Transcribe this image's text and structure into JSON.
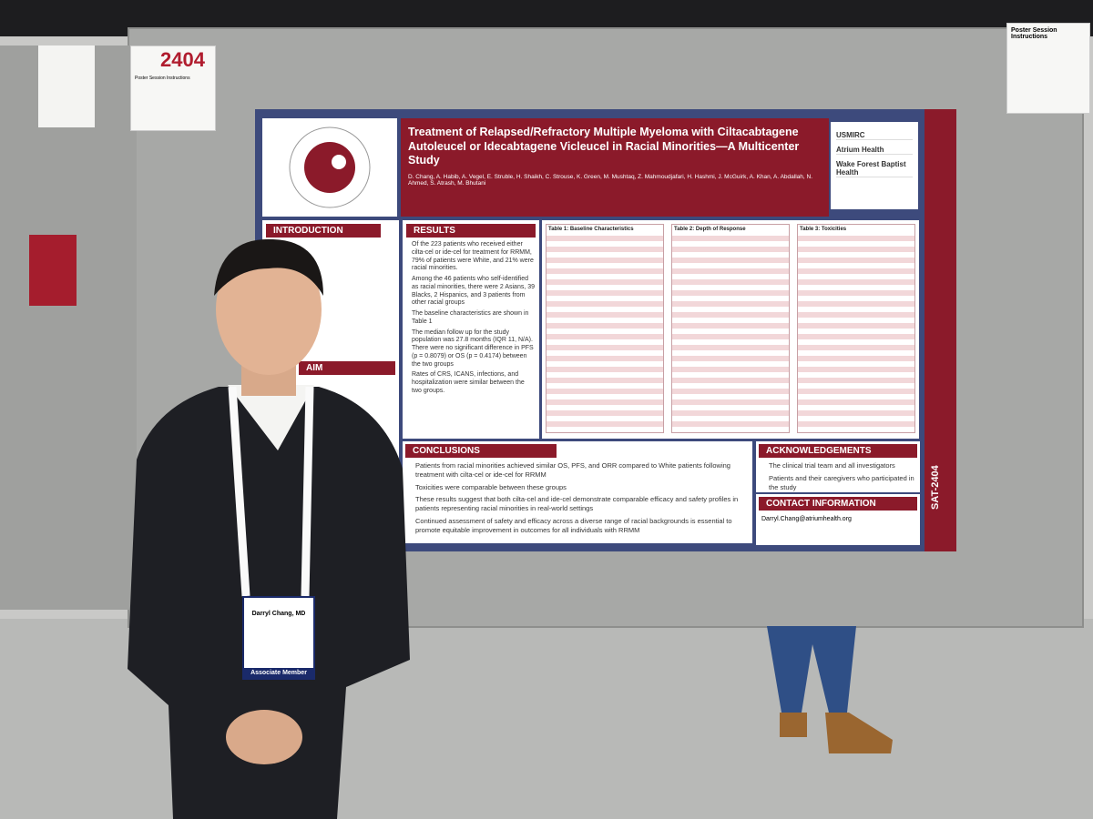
{
  "booth_sign": {
    "number": "2404",
    "title": "Poster Session Instructions"
  },
  "right_sign": {
    "title": "Poster Session Instructions"
  },
  "poster": {
    "title": "Treatment of Relapsed/Refractory Multiple Myeloma with Ciltacabtagene Autoleucel or Idecabtagene Vicleucel in Racial Minorities—A Multicenter Study",
    "authors": "D. Chang, A. Habib, A. Vegel, E. Struble, H. Shaikh, C. Strouse, K. Green, M. Mushtaq, Z. Mahmoudjafari, H. Hashmi, J. McGuirk, A. Khan, A. Abdallah, N. Ahmed, S. Atrash, M. Bhutani",
    "logos": [
      "USMIRC",
      "Atrium Health",
      "Wake Forest Baptist Health"
    ],
    "introduction": {
      "heading": "INTRODUCTION"
    },
    "aim": {
      "heading": "AIM"
    },
    "results": {
      "heading": "RESULTS",
      "bullets": [
        "Of the 223 patients who received either cilta-cel or ide-cel for treatment for RRMM, 79% of patients were White, and 21% were racial minorities.",
        "Among the 46 patients who self-identified as racial minorities, there were 2 Asians, 39 Blacks, 2 Hispanics, and 3 patients from other racial groups",
        "The baseline characteristics are shown in Table 1",
        "The median follow up for the study population was 27.8 months (IQR 11, N/A). There were no significant difference in PFS (p = 0.8079) or OS (p = 0.4174) between the two groups",
        "Rates of CRS, ICANS, infections, and hospitalization were similar between the two groups."
      ]
    },
    "tables": [
      "Table 1: Baseline Characteristics",
      "Table 2: Depth of Response",
      "Table 3: Toxicities"
    ],
    "conclusions": {
      "heading": "CONCLUSIONS",
      "bullets": [
        "Patients from racial minorities achieved similar OS, PFS, and ORR compared to White patients following treatment with cilta-cel or ide-cel for RRMM",
        "Toxicities were comparable between these groups",
        "These results suggest that both cilta-cel and ide-cel demonstrate comparable efficacy and safety profiles in patients representing racial minorities in real-world settings",
        "Continued assessment of safety and efficacy across a diverse range of racial backgrounds is essential to promote equitable improvement in outcomes for all individuals with RRMM"
      ]
    },
    "acknowledgements": {
      "heading": "ACKNOWLEDGEMENTS",
      "bullets": [
        "The clinical trial team and all investigators",
        "Patients and their caregivers who participated in the study"
      ]
    },
    "contact": {
      "heading": "CONTACT INFORMATION",
      "email": "Darryl.Chang@atriumhealth.org"
    },
    "side_label": "SAT-2404"
  },
  "badge": {
    "name": "Darryl Chang, MD",
    "role": "Associate Member"
  }
}
